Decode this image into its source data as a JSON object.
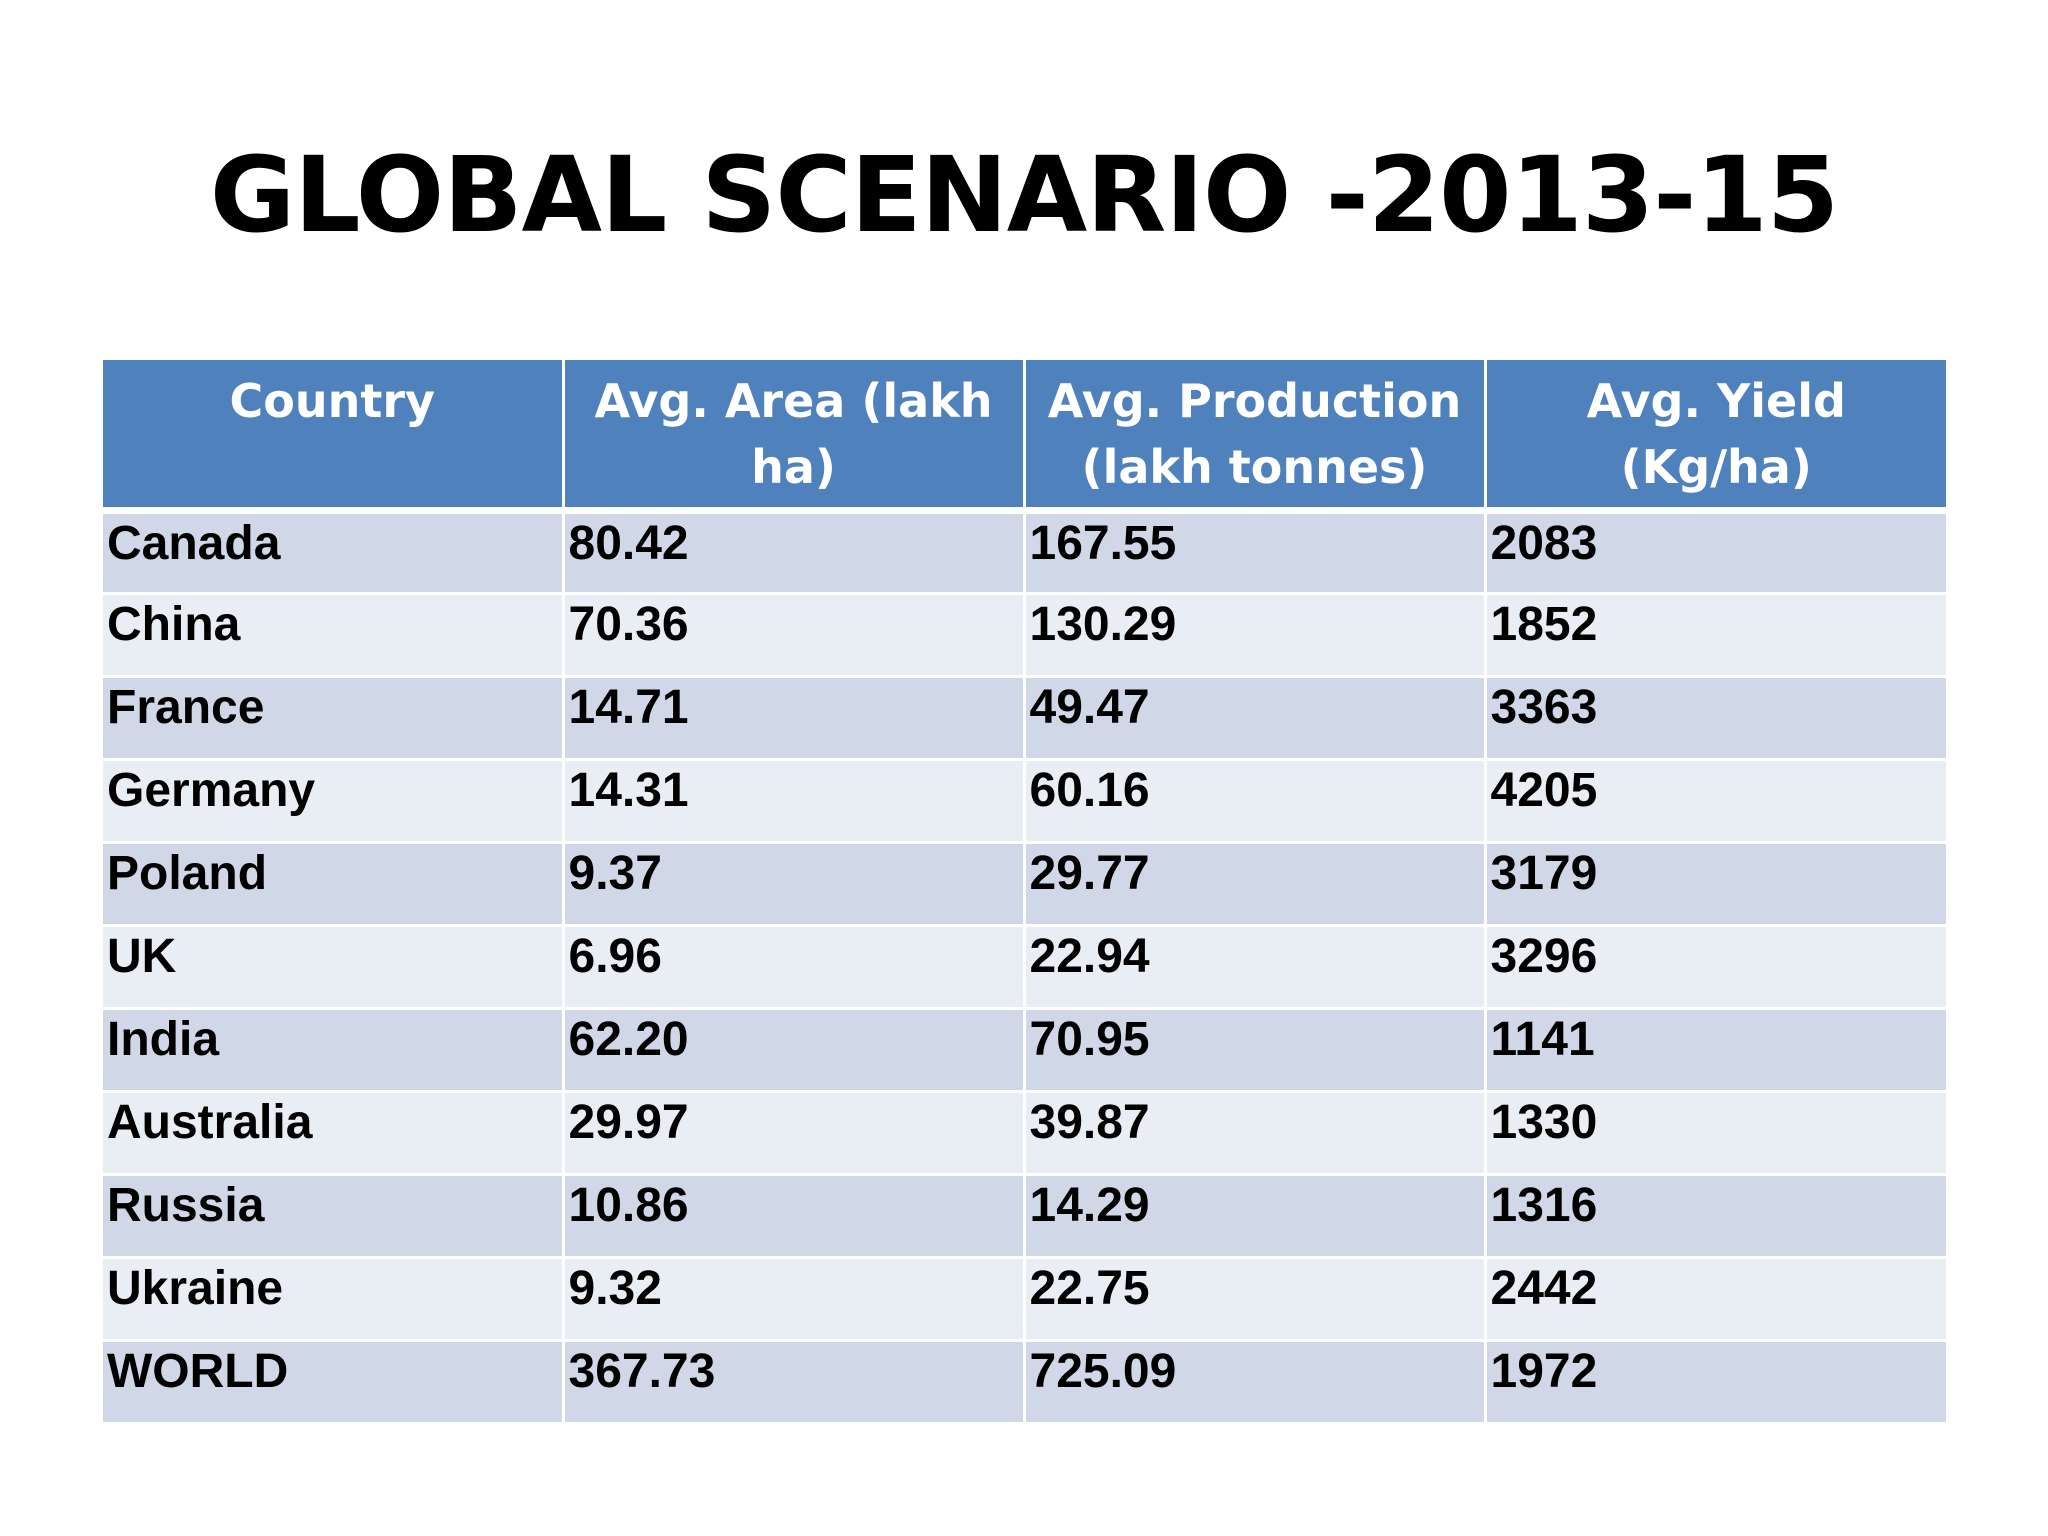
{
  "slide": {
    "title": "GLOBAL SCENARIO -2013-15"
  },
  "table": {
    "headers": [
      "Country",
      "Avg. Area (lakh ha)",
      "Avg. Production (lakh tonnes)",
      "Avg. Yield (Kg/ha)"
    ],
    "rows": [
      [
        "Canada",
        "80.42",
        "167.55",
        "2083"
      ],
      [
        "China",
        "70.36",
        "130.29",
        "1852"
      ],
      [
        "France",
        "14.71",
        "49.47",
        "3363"
      ],
      [
        "Germany",
        "14.31",
        "60.16",
        "4205"
      ],
      [
        "Poland",
        "9.37",
        "29.77",
        "3179"
      ],
      [
        "UK",
        "6.96",
        "22.94",
        "3296"
      ],
      [
        "India",
        "62.20",
        "70.95",
        "1141"
      ],
      [
        "Australia",
        "29.97",
        "39.87",
        "1330"
      ],
      [
        "Russia",
        "10.86",
        "14.29",
        "1316"
      ],
      [
        "Ukraine",
        "9.32",
        "22.75",
        "2442"
      ],
      [
        "WORLD",
        "367.73",
        "725.09",
        "1972"
      ]
    ]
  },
  "colors": {
    "header_bg": "#4f81bd",
    "row_odd_bg": "#d0d8e8",
    "row_even_bg": "#e9edf4"
  }
}
